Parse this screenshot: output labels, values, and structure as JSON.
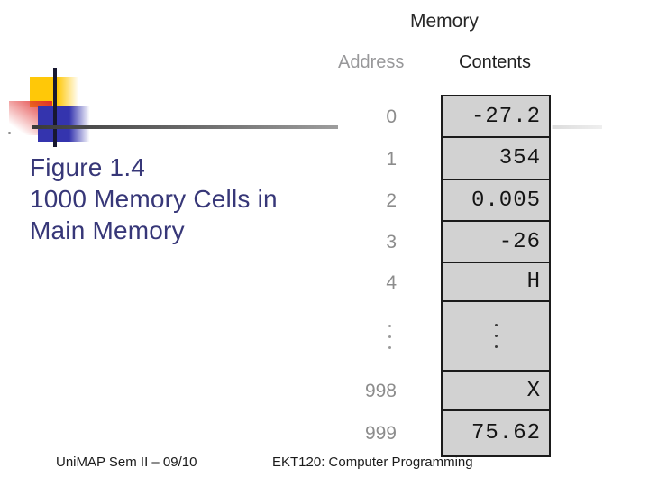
{
  "slide": {
    "caption_lines": [
      "Figure 1.4",
      "1000 Memory Cells in",
      "Main Memory"
    ]
  },
  "diagram": {
    "title": "Memory",
    "address_header": "Address",
    "contents_header": "Contents",
    "rows": [
      {
        "address": "0",
        "content": "-27.2"
      },
      {
        "address": "1",
        "content": "354"
      },
      {
        "address": "2",
        "content": "0.005"
      },
      {
        "address": "3",
        "content": "-26"
      },
      {
        "address": "4",
        "content": "H"
      },
      {
        "ellipsis": true
      },
      {
        "address": "998",
        "content": "X"
      },
      {
        "address": "999",
        "content": "75.62"
      }
    ]
  },
  "footer": {
    "left": "UniMAP Sem II – 09/10",
    "right": "EKT120: Computer Programming"
  },
  "colors": {
    "title_text": "#373778",
    "accent_yellow": "#ffc808",
    "accent_red": "#df2b2b",
    "accent_blue": "#3434ae",
    "cell_bg": "#d2d2d2",
    "cell_border": "#1b1b1b",
    "address_gray": "#8c8c8c"
  }
}
